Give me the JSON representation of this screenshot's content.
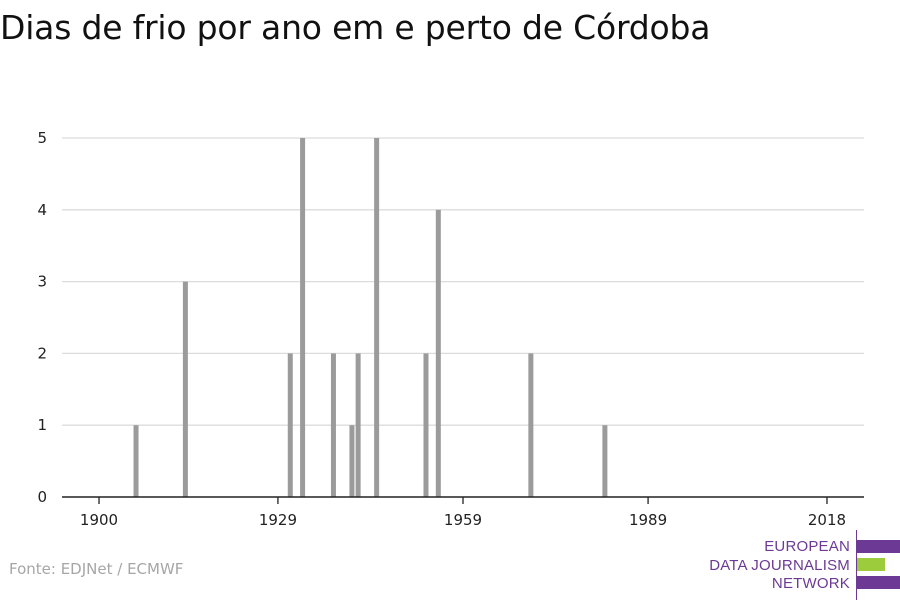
{
  "title": "Dias de frio por ano em e perto de Córdoba",
  "source": "Fonte: EDJNet / ECMWF",
  "logo": {
    "lines": [
      "EUROPEAN",
      "DATA JOURNALISM",
      "NETWORK"
    ],
    "colors": {
      "purple": "#6c3a95",
      "green": "#9ccb3b"
    }
  },
  "chart_data": {
    "type": "bar",
    "title": "Dias de frio por ano em e perto de Córdoba",
    "xlabel": "",
    "ylabel": "",
    "xlim": [
      1894,
      2024
    ],
    "ylim": [
      0,
      5
    ],
    "x_ticks": [
      1900,
      1929,
      1959,
      1989,
      2018
    ],
    "y_ticks": [
      0,
      1,
      2,
      3,
      4,
      5
    ],
    "grid": "horizontal",
    "bar_color": "#9b9b9b",
    "x": [
      1906,
      1914,
      1931,
      1933,
      1938,
      1941,
      1942,
      1945,
      1953,
      1955,
      1970,
      1982
    ],
    "values": [
      1,
      3,
      2,
      5,
      2,
      1,
      2,
      5,
      2,
      4,
      2,
      1
    ]
  }
}
